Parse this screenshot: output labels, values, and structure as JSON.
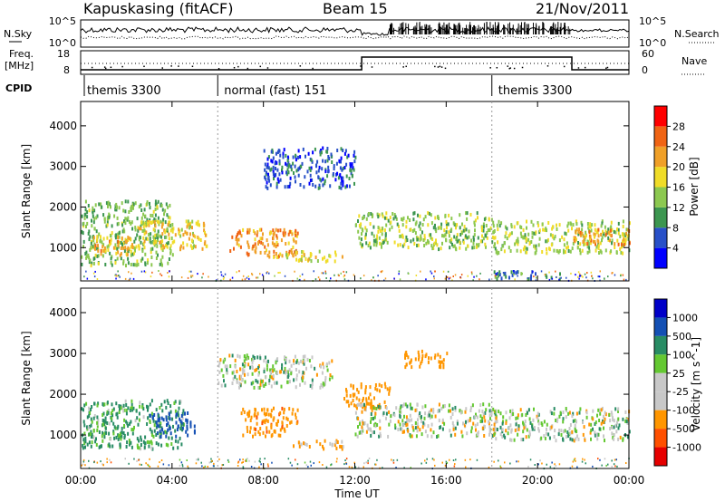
{
  "header": {
    "title": "Kapuskasing (fitACF)",
    "beam": "Beam 15",
    "date": "21/Nov/2011"
  },
  "strip_panels": {
    "nsky_label": "N.Sky",
    "nsky_ticks": [
      "10^5",
      "10^0"
    ],
    "nsearch_label": "N.Search",
    "nsearch_ticks": [
      "10^5",
      "10^0"
    ],
    "freq_label_1": "Freq.",
    "freq_label_2": "[MHz]",
    "freq_ticks": [
      "18",
      "8"
    ],
    "nave_label": "Nave",
    "nave_ticks": [
      "60",
      "0"
    ],
    "cpid_label": "CPID",
    "cpid_segments": [
      {
        "label": "themis 3300",
        "start": 0.0
      },
      {
        "label": "normal (fast) 151",
        "start": 6.0
      },
      {
        "label": "themis 3300",
        "start": 18.0
      }
    ]
  },
  "colors": {
    "power": [
      "#0000ff",
      "#2850c8",
      "#3c9650",
      "#8cc850",
      "#f0dc28",
      "#f0a028",
      "#f06414",
      "#ff0000"
    ],
    "velocity": [
      "#e60000",
      "#ff5000",
      "#ff9600",
      "#c8c8c8",
      "#c8c8c8",
      "#64c832",
      "#288c64",
      "#1450b4",
      "#0000c8"
    ]
  },
  "chart_data": [
    {
      "type": "heatmap",
      "title": "",
      "xlabel": "Time UT",
      "ylabel": "Slant Range [km]",
      "x_ticks": [
        "00:00",
        "04:00",
        "08:00",
        "12:00",
        "16:00",
        "20:00",
        "00:00"
      ],
      "xlim": [
        0,
        24
      ],
      "y_ticks": [
        "1000",
        "2000",
        "3000",
        "4000"
      ],
      "ylim": [
        180,
        4600
      ],
      "colorbar_label": "Power [dB]",
      "colorbar_ticks": [
        "4",
        "8",
        "12",
        "16",
        "20",
        "24",
        "28"
      ],
      "colorbar_range": [
        0,
        32
      ],
      "bands": [
        {
          "t0": 0.0,
          "t1": 4.0,
          "r0": 600,
          "r1": 2200,
          "value": 13
        },
        {
          "t0": 0.5,
          "t1": 2.5,
          "r0": 850,
          "r1": 1300,
          "value": 21
        },
        {
          "t0": 2.5,
          "t1": 5.5,
          "r0": 1000,
          "r1": 1700,
          "value": 19
        },
        {
          "t0": 6.5,
          "t1": 9.5,
          "r0": 800,
          "r1": 1500,
          "value": 23
        },
        {
          "t0": 8.5,
          "t1": 11.5,
          "r0": 700,
          "r1": 950,
          "value": 18
        },
        {
          "t0": 12.0,
          "t1": 18.0,
          "r0": 1000,
          "r1": 1900,
          "value": 14
        },
        {
          "t0": 18.0,
          "t1": 24.0,
          "r0": 900,
          "r1": 1700,
          "value": 15
        },
        {
          "t0": 21.5,
          "t1": 24.0,
          "r0": 1100,
          "r1": 1500,
          "value": 22
        },
        {
          "t0": 8.0,
          "t1": 12.0,
          "r0": 2500,
          "r1": 3500,
          "value": 6
        },
        {
          "t0": 18.0,
          "t1": 21.0,
          "r0": 250,
          "r1": 450,
          "value": 10
        }
      ]
    },
    {
      "type": "heatmap",
      "title": "",
      "xlabel": "Time UT",
      "ylabel": "Slant Range [km]",
      "x_ticks": [
        "00:00",
        "04:00",
        "08:00",
        "12:00",
        "16:00",
        "20:00",
        "00:00"
      ],
      "xlim": [
        0,
        24
      ],
      "y_ticks": [
        "1000",
        "2000",
        "3000",
        "4000"
      ],
      "ylim": [
        180,
        4600
      ],
      "colorbar_label": "Velocity [m s^-1]",
      "colorbar_ticks": [
        "1000",
        "500",
        "100",
        "25",
        "-25",
        "-100",
        "-500",
        "-1000"
      ],
      "bands": [
        {
          "t0": 0.0,
          "t1": 4.5,
          "r0": 700,
          "r1": 1900,
          "value": 150
        },
        {
          "t0": 3.0,
          "t1": 5.0,
          "r0": 1000,
          "r1": 1600,
          "value": 600
        },
        {
          "t0": 7.0,
          "t1": 9.5,
          "r0": 1000,
          "r1": 1700,
          "value": -400
        },
        {
          "t0": 9.0,
          "t1": 11.5,
          "r0": 700,
          "r1": 900,
          "value": -150
        },
        {
          "t0": 11.5,
          "t1": 13.5,
          "r0": 1700,
          "r1": 2300,
          "value": -300
        },
        {
          "t0": 12.0,
          "t1": 18.0,
          "r0": 1000,
          "r1": 1800,
          "value": 0
        },
        {
          "t0": 18.0,
          "t1": 24.0,
          "r0": 900,
          "r1": 1700,
          "value": 0
        },
        {
          "t0": 14.0,
          "t1": 16.0,
          "r0": 2700,
          "r1": 3100,
          "value": -300
        },
        {
          "t0": 6.0,
          "t1": 11.0,
          "r0": 2200,
          "r1": 3000,
          "value": 0
        }
      ]
    }
  ]
}
